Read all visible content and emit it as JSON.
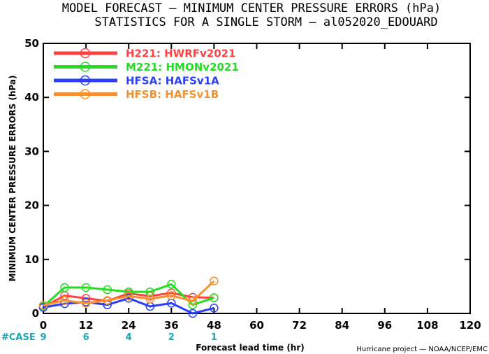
{
  "chart_data": {
    "type": "line",
    "title": "MODEL FORECAST — MINIMUM CENTER PRESSURE ERRORS (hPa)",
    "subtitle": "STATISTICS FOR A SINGLE STORM — al052020_EDOUARD",
    "xlabel": "Forecast lead time (hr)",
    "ylabel": "MINIMUM CENTER PRESSURE ERRORS (hPa)",
    "xlim": [
      0,
      120
    ],
    "ylim": [
      0,
      50
    ],
    "x_ticks": [
      0,
      12,
      24,
      36,
      48,
      60,
      72,
      84,
      96,
      108,
      120
    ],
    "y_ticks": [
      0,
      10,
      20,
      30,
      40,
      50
    ],
    "grid": false,
    "legend_position": "top-left",
    "x": [
      0,
      6,
      12,
      18,
      24,
      30,
      36,
      42,
      48
    ],
    "series": [
      {
        "id": "H221",
        "label": "H221: ",
        "desc": "HWRFv2021",
        "color": "#ff4040",
        "values": [
          1.2,
          3.3,
          2.8,
          2.3,
          3.7,
          3.2,
          3.8,
          3.0,
          2.9
        ]
      },
      {
        "id": "M221",
        "label": "M221: ",
        "desc": "HMONv2021",
        "color": "#22dd22",
        "values": [
          1.3,
          4.8,
          4.8,
          4.4,
          4.0,
          4.0,
          5.4,
          1.6,
          2.9
        ]
      },
      {
        "id": "HFSA",
        "label": "HFSA: ",
        "desc": "HAFSv1A",
        "color": "#2a3ff5",
        "values": [
          1.1,
          1.8,
          2.1,
          1.6,
          2.8,
          1.3,
          1.9,
          0.0,
          1.0
        ]
      },
      {
        "id": "HFSB",
        "label": "HFSB: ",
        "desc": "HAFSv1B",
        "color": "#f5912e",
        "values": [
          1.5,
          2.4,
          1.9,
          2.4,
          3.2,
          2.7,
          3.3,
          2.3,
          6.0
        ]
      }
    ],
    "case_label": "#CASE",
    "case_x": [
      0,
      12,
      24,
      36,
      48
    ],
    "case_counts": [
      "9",
      "6",
      "4",
      "2",
      "1"
    ],
    "credit": "Hurricane project — NOAA/NCEP/EMC"
  }
}
